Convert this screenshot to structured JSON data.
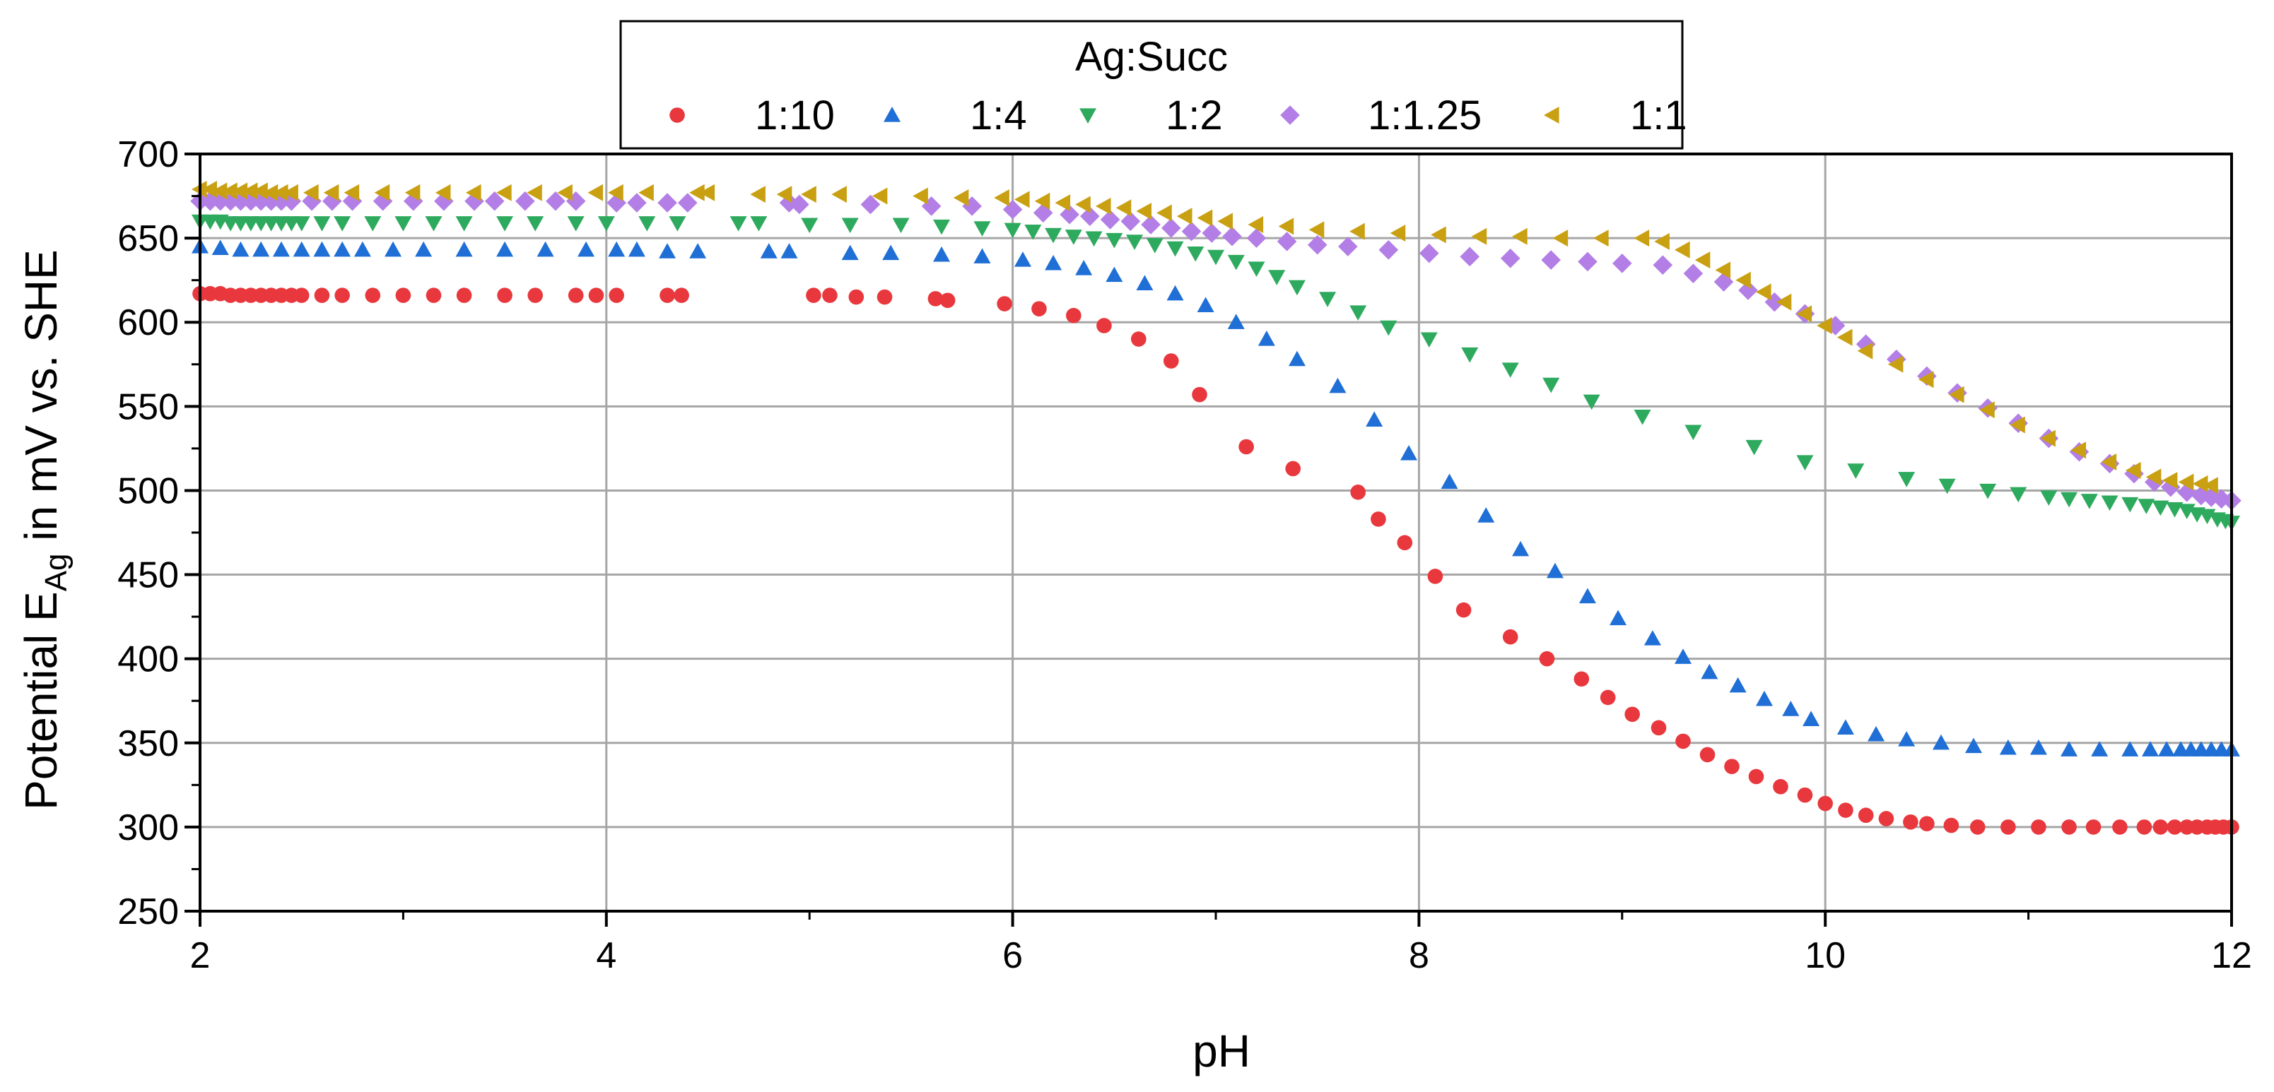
{
  "chart_data": {
    "type": "scatter",
    "title": "",
    "xlabel": "pH",
    "ylabel": {
      "main": "Potential E",
      "subscript": "Ag",
      "rest": " in mV vs. SHE"
    },
    "xlim": [
      2,
      12
    ],
    "ylim": [
      250,
      700
    ],
    "xticks": [
      "2",
      "4",
      "6",
      "8",
      "10",
      "12"
    ],
    "yticks": [
      "250",
      "300",
      "350",
      "400",
      "450",
      "500",
      "550",
      "600",
      "650",
      "700"
    ],
    "grid": true,
    "legend": {
      "title": "Ag:Succ",
      "position": "top-center"
    },
    "series": [
      {
        "name": "1:10",
        "marker": "circle",
        "color": "#e8383d",
        "x": [
          2.0,
          2.05,
          2.1,
          2.15,
          2.2,
          2.25,
          2.3,
          2.35,
          2.4,
          2.45,
          2.5,
          2.6,
          2.7,
          2.85,
          3.0,
          3.15,
          3.3,
          3.5,
          3.65,
          3.85,
          3.95,
          4.05,
          4.3,
          4.37,
          5.02,
          5.1,
          5.23,
          5.37,
          5.62,
          5.68,
          5.96,
          6.13,
          6.3,
          6.45,
          6.62,
          6.78,
          6.92,
          7.15,
          7.38,
          7.7,
          7.8,
          7.93,
          8.08,
          8.22,
          8.45,
          8.63,
          8.8,
          8.93,
          9.05,
          9.18,
          9.3,
          9.42,
          9.54,
          9.66,
          9.78,
          9.9,
          10.0,
          10.1,
          10.2,
          10.3,
          10.42,
          10.5,
          10.62,
          10.75,
          10.9,
          11.05,
          11.2,
          11.32,
          11.45,
          11.57,
          11.65,
          11.72,
          11.78,
          11.83,
          11.88,
          11.92,
          11.96,
          12.0
        ],
        "y": [
          617,
          617,
          617,
          616,
          616,
          616,
          616,
          616,
          616,
          616,
          616,
          616,
          616,
          616,
          616,
          616,
          616,
          616,
          616,
          616,
          616,
          616,
          616,
          616,
          616,
          616,
          615,
          615,
          614,
          613,
          611,
          608,
          604,
          598,
          590,
          577,
          557,
          526,
          513,
          499,
          483,
          469,
          449,
          429,
          413,
          400,
          388,
          377,
          367,
          359,
          351,
          343,
          336,
          330,
          324,
          319,
          314,
          310,
          307,
          305,
          303,
          302,
          301,
          300,
          300,
          300,
          300,
          300,
          300,
          300,
          300,
          300,
          300,
          300,
          300,
          300,
          300,
          300
        ]
      },
      {
        "name": "1:4",
        "marker": "triangle-up",
        "color": "#1f6fd6",
        "x": [
          2.0,
          2.1,
          2.2,
          2.3,
          2.4,
          2.5,
          2.6,
          2.7,
          2.8,
          2.95,
          3.1,
          3.3,
          3.5,
          3.7,
          3.9,
          4.05,
          4.15,
          4.3,
          4.45,
          4.8,
          4.9,
          5.2,
          5.4,
          5.65,
          5.85,
          6.05,
          6.2,
          6.35,
          6.5,
          6.65,
          6.8,
          6.95,
          7.1,
          7.25,
          7.4,
          7.6,
          7.78,
          7.95,
          8.15,
          8.33,
          8.5,
          8.67,
          8.83,
          8.98,
          9.15,
          9.3,
          9.43,
          9.57,
          9.7,
          9.83,
          9.93,
          10.1,
          10.25,
          10.4,
          10.57,
          10.73,
          10.9,
          11.05,
          11.2,
          11.35,
          11.5,
          11.6,
          11.68,
          11.75,
          11.8,
          11.85,
          11.9,
          11.95,
          12.0
        ],
        "y": [
          645,
          644,
          643,
          643,
          643,
          643,
          643,
          643,
          643,
          643,
          643,
          643,
          643,
          643,
          643,
          643,
          643,
          642,
          642,
          642,
          642,
          641,
          641,
          640,
          639,
          637,
          635,
          632,
          628,
          623,
          617,
          610,
          600,
          590,
          578,
          562,
          542,
          522,
          505,
          485,
          465,
          452,
          437,
          424,
          412,
          401,
          392,
          384,
          376,
          370,
          364,
          359,
          355,
          352,
          350,
          348,
          347,
          347,
          346,
          346,
          346,
          346,
          346,
          346,
          346,
          346,
          346,
          346,
          346
        ]
      },
      {
        "name": "1:2",
        "marker": "triangle-down",
        "color": "#2eaa5e",
        "x": [
          2.0,
          2.05,
          2.1,
          2.15,
          2.2,
          2.25,
          2.3,
          2.35,
          2.4,
          2.45,
          2.5,
          2.6,
          2.7,
          2.85,
          3.0,
          3.15,
          3.3,
          3.5,
          3.65,
          3.85,
          4.0,
          4.2,
          4.35,
          4.65,
          4.75,
          5.0,
          5.2,
          5.45,
          5.65,
          5.85,
          6.0,
          6.1,
          6.2,
          6.3,
          6.4,
          6.5,
          6.6,
          6.7,
          6.8,
          6.9,
          7.0,
          7.1,
          7.2,
          7.3,
          7.4,
          7.55,
          7.7,
          7.85,
          8.05,
          8.25,
          8.45,
          8.65,
          8.85,
          9.1,
          9.35,
          9.65,
          9.9,
          10.15,
          10.4,
          10.6,
          10.8,
          10.95,
          11.1,
          11.2,
          11.3,
          11.4,
          11.5,
          11.58,
          11.65,
          11.72,
          11.78,
          11.83,
          11.88,
          11.93,
          11.97,
          12.0
        ],
        "y": [
          660,
          660,
          660,
          659,
          659,
          659,
          659,
          659,
          659,
          659,
          659,
          659,
          659,
          659,
          659,
          659,
          659,
          659,
          659,
          659,
          659,
          659,
          659,
          659,
          659,
          658,
          658,
          658,
          657,
          656,
          655,
          654,
          652,
          651,
          650,
          649,
          648,
          646,
          644,
          641,
          639,
          636,
          632,
          627,
          621,
          614,
          606,
          597,
          590,
          581,
          572,
          563,
          553,
          544,
          535,
          526,
          517,
          512,
          507,
          503,
          500,
          498,
          496,
          495,
          494,
          493,
          492,
          491,
          490,
          489,
          488,
          486,
          485,
          483,
          482,
          481
        ]
      },
      {
        "name": "1:1.25",
        "marker": "diamond",
        "color": "#b37ee6",
        "x": [
          2.0,
          2.05,
          2.1,
          2.15,
          2.2,
          2.25,
          2.3,
          2.35,
          2.4,
          2.45,
          2.55,
          2.65,
          2.75,
          2.9,
          3.05,
          3.2,
          3.35,
          3.45,
          3.6,
          3.75,
          3.85,
          4.05,
          4.15,
          4.3,
          4.4,
          4.9,
          4.95,
          5.3,
          5.6,
          5.8,
          6.0,
          6.15,
          6.28,
          6.38,
          6.48,
          6.58,
          6.68,
          6.78,
          6.88,
          6.98,
          7.08,
          7.2,
          7.35,
          7.5,
          7.65,
          7.85,
          8.05,
          8.25,
          8.45,
          8.65,
          8.83,
          9.0,
          9.2,
          9.35,
          9.5,
          9.62,
          9.75,
          9.9,
          10.05,
          10.2,
          10.35,
          10.5,
          10.65,
          10.8,
          10.95,
          11.1,
          11.25,
          11.4,
          11.52,
          11.62,
          11.7,
          11.78,
          11.85,
          11.9,
          11.95,
          12.0
        ],
        "y": [
          672,
          672,
          672,
          672,
          672,
          672,
          672,
          672,
          672,
          672,
          672,
          672,
          672,
          672,
          672,
          672,
          672,
          672,
          672,
          672,
          672,
          671,
          671,
          671,
          671,
          671,
          670,
          670,
          669,
          669,
          667,
          665,
          664,
          663,
          661,
          660,
          658,
          656,
          654,
          653,
          651,
          650,
          648,
          646,
          645,
          643,
          641,
          639,
          638,
          637,
          636,
          635,
          634,
          629,
          624,
          619,
          612,
          605,
          598,
          587,
          578,
          568,
          558,
          549,
          540,
          531,
          523,
          516,
          510,
          505,
          502,
          499,
          497,
          496,
          495,
          494
        ]
      },
      {
        "name": "1:1",
        "marker": "triangle-left",
        "color": "#c9a012",
        "x": [
          2.0,
          2.05,
          2.1,
          2.15,
          2.2,
          2.25,
          2.3,
          2.35,
          2.4,
          2.45,
          2.55,
          2.65,
          2.75,
          2.9,
          3.05,
          3.2,
          3.35,
          3.5,
          3.65,
          3.8,
          3.95,
          4.05,
          4.2,
          4.45,
          4.5,
          4.75,
          4.88,
          5.0,
          5.15,
          5.35,
          5.55,
          5.75,
          5.95,
          6.05,
          6.15,
          6.25,
          6.35,
          6.45,
          6.55,
          6.65,
          6.75,
          6.85,
          6.95,
          7.05,
          7.2,
          7.35,
          7.5,
          7.7,
          7.9,
          8.1,
          8.3,
          8.5,
          8.7,
          8.9,
          9.1,
          9.2,
          9.3,
          9.4,
          9.5,
          9.6,
          9.7,
          9.8,
          9.9,
          10.0,
          10.1,
          10.2,
          10.35,
          10.5,
          10.65,
          10.8,
          10.95,
          11.1,
          11.25,
          11.4,
          11.52,
          11.62,
          11.7,
          11.78,
          11.85,
          11.9
        ],
        "y": [
          679,
          679,
          678,
          678,
          678,
          678,
          678,
          677,
          677,
          677,
          677,
          677,
          677,
          677,
          677,
          677,
          677,
          677,
          677,
          677,
          677,
          677,
          677,
          677,
          677,
          676,
          676,
          676,
          676,
          675,
          675,
          674,
          674,
          673,
          672,
          671,
          670,
          669,
          668,
          666,
          665,
          663,
          662,
          660,
          658,
          657,
          655,
          654,
          653,
          652,
          651,
          651,
          650,
          650,
          650,
          648,
          643,
          637,
          631,
          625,
          618,
          612,
          605,
          598,
          591,
          583,
          575,
          566,
          557,
          548,
          539,
          531,
          524,
          517,
          512,
          508,
          506,
          505,
          504,
          503
        ]
      }
    ]
  }
}
